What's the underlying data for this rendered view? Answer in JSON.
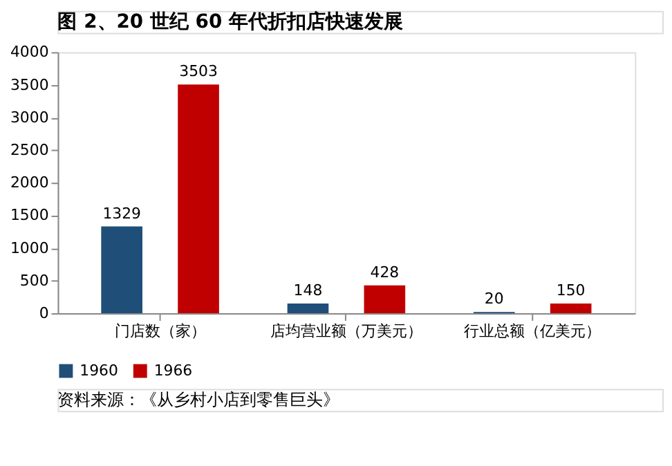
{
  "chart_data": {
    "type": "bar",
    "title": "图 2、20 世纪 60 年代折扣店快速发展",
    "categories": [
      "门店数（家）",
      "店均营业额（万美元）",
      "行业总额（亿美元）"
    ],
    "series": [
      {
        "name": "1960",
        "color": "#1f4e79",
        "values": [
          1329,
          148,
          20
        ]
      },
      {
        "name": "1966",
        "color": "#c00000",
        "values": [
          3503,
          428,
          150
        ]
      }
    ],
    "ylim": [
      0,
      4000
    ],
    "yticks": [
      0,
      500,
      1000,
      1500,
      2000,
      2500,
      3000,
      3500,
      4000
    ],
    "grid": false,
    "legend": "bottom",
    "data_labels": true,
    "annotations": [
      "资料来源：《从乡村小店到零售巨头》"
    ]
  }
}
